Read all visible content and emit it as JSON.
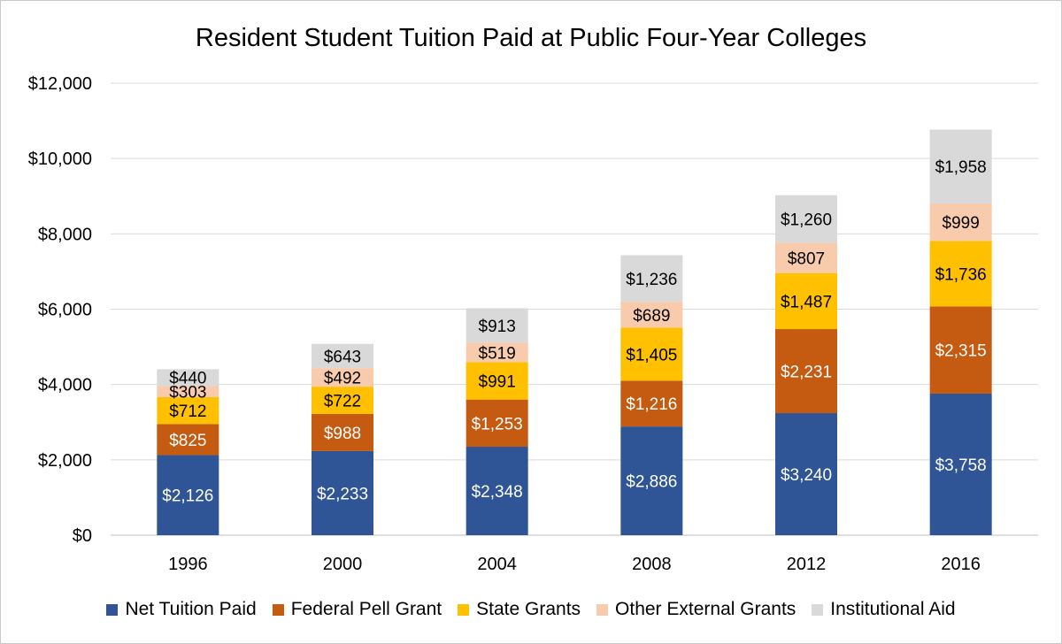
{
  "chart_data": {
    "type": "bar",
    "stacked": true,
    "title": "Resident Student Tuition Paid at Public Four-Year Colleges",
    "xlabel": "",
    "ylabel": "",
    "categories": [
      "1996",
      "2000",
      "2004",
      "2008",
      "2012",
      "2016"
    ],
    "ylim": [
      0,
      12000
    ],
    "yticks": [
      0,
      2000,
      4000,
      6000,
      8000,
      10000,
      12000
    ],
    "ytick_labels": [
      "$0",
      "$2,000",
      "$4,000",
      "$6,000",
      "$8,000",
      "$10,000",
      "$12,000"
    ],
    "grid": true,
    "legend_position": "bottom",
    "series": [
      {
        "name": "Net Tuition Paid",
        "color": "#2F5597",
        "label_color": "#FFFFFF",
        "values": [
          2126,
          2233,
          2348,
          2886,
          3240,
          3758
        ],
        "labels": [
          "$2,126",
          "$2,233",
          "$2,348",
          "$2,886",
          "$3,240",
          "$3,758"
        ]
      },
      {
        "name": "Federal Pell Grant",
        "color": "#C55A11",
        "label_color": "#FFFFFF",
        "values": [
          825,
          988,
          1253,
          1216,
          2231,
          2315
        ],
        "labels": [
          "$825",
          "$988",
          "$1,253",
          "$1,216",
          "$2,231",
          "$2,315"
        ]
      },
      {
        "name": "State Grants",
        "color": "#FFC000",
        "label_color": "#000000",
        "values": [
          712,
          722,
          991,
          1405,
          1487,
          1736
        ],
        "labels": [
          "$712",
          "$722",
          "$991",
          "$1,405",
          "$1,487",
          "$1,736"
        ]
      },
      {
        "name": "Other External Grants",
        "color": "#F8CBAD",
        "label_color": "#000000",
        "values": [
          303,
          492,
          519,
          689,
          807,
          999
        ],
        "labels": [
          "$303",
          "$492",
          "$519",
          "$689",
          "$807",
          "$999"
        ]
      },
      {
        "name": "Institutional Aid",
        "color": "#D9D9D9",
        "label_color": "#000000",
        "values": [
          440,
          643,
          913,
          1236,
          1260,
          1958
        ],
        "labels": [
          "$440",
          "$643",
          "$913",
          "$1,236",
          "$1,260",
          "$1,958"
        ]
      }
    ]
  }
}
